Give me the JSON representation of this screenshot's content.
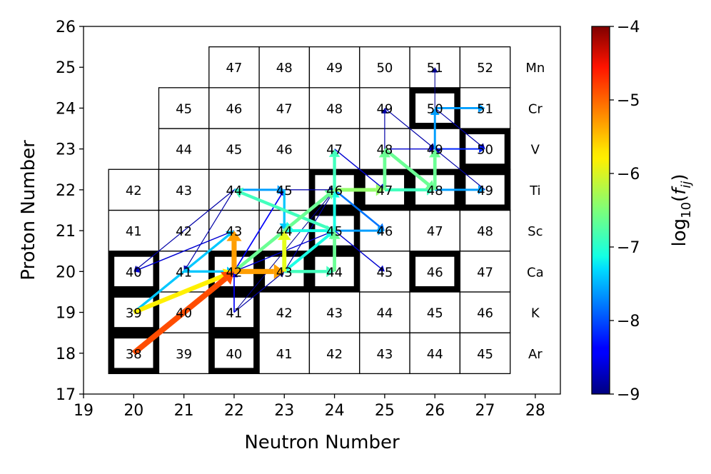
{
  "chart_data": {
    "type": "reaction-network-grid",
    "xlabel": "Neutron Number",
    "ylabel": "Proton Number",
    "xlim": [
      19,
      28.5
    ],
    "ylim": [
      17,
      26
    ],
    "x_ticks": [
      "19",
      "20",
      "21",
      "22",
      "23",
      "24",
      "25",
      "26",
      "27",
      "28"
    ],
    "y_ticks": [
      "17",
      "18",
      "19",
      "20",
      "21",
      "22",
      "23",
      "24",
      "25",
      "26"
    ],
    "colorbar": {
      "label_prefix": "log",
      "label_sub": "10",
      "label_open": "(",
      "label_var": "f",
      "label_var_sub": "ij",
      "label_close": ")",
      "min": -9,
      "max": -4,
      "ticks": [
        "−4",
        "−5",
        "−6",
        "−7",
        "−8",
        "−9"
      ],
      "colormap": "jet"
    },
    "rows": [
      {
        "element": "Ar",
        "Z": 18,
        "cells": [
          {
            "N": 20,
            "A": "38"
          },
          {
            "N": 21,
            "A": "39"
          },
          {
            "N": 22,
            "A": "40"
          },
          {
            "N": 23,
            "A": "41"
          },
          {
            "N": 24,
            "A": "42"
          },
          {
            "N": 25,
            "A": "43"
          },
          {
            "N": 26,
            "A": "44"
          },
          {
            "N": 27,
            "A": "45"
          }
        ]
      },
      {
        "element": "K",
        "Z": 19,
        "cells": [
          {
            "N": 20,
            "A": "39"
          },
          {
            "N": 21,
            "A": "40"
          },
          {
            "N": 22,
            "A": "41"
          },
          {
            "N": 23,
            "A": "42"
          },
          {
            "N": 24,
            "A": "43"
          },
          {
            "N": 25,
            "A": "44"
          },
          {
            "N": 26,
            "A": "45"
          },
          {
            "N": 27,
            "A": "46"
          }
        ]
      },
      {
        "element": "Ca",
        "Z": 20,
        "cells": [
          {
            "N": 20,
            "A": "40"
          },
          {
            "N": 21,
            "A": "41"
          },
          {
            "N": 22,
            "A": "42"
          },
          {
            "N": 23,
            "A": "43"
          },
          {
            "N": 24,
            "A": "44"
          },
          {
            "N": 25,
            "A": "45"
          },
          {
            "N": 26,
            "A": "46"
          },
          {
            "N": 27,
            "A": "47"
          }
        ]
      },
      {
        "element": "Sc",
        "Z": 21,
        "cells": [
          {
            "N": 20,
            "A": "41"
          },
          {
            "N": 21,
            "A": "42"
          },
          {
            "N": 22,
            "A": "43"
          },
          {
            "N": 23,
            "A": "44"
          },
          {
            "N": 24,
            "A": "45"
          },
          {
            "N": 25,
            "A": "46"
          },
          {
            "N": 26,
            "A": "47"
          },
          {
            "N": 27,
            "A": "48"
          }
        ]
      },
      {
        "element": "Ti",
        "Z": 22,
        "cells": [
          {
            "N": 20,
            "A": "42"
          },
          {
            "N": 21,
            "A": "43"
          },
          {
            "N": 22,
            "A": "44"
          },
          {
            "N": 23,
            "A": "45"
          },
          {
            "N": 24,
            "A": "46"
          },
          {
            "N": 25,
            "A": "47"
          },
          {
            "N": 26,
            "A": "48"
          },
          {
            "N": 27,
            "A": "49"
          }
        ]
      },
      {
        "element": "V",
        "Z": 23,
        "cells": [
          {
            "N": 21,
            "A": "44"
          },
          {
            "N": 22,
            "A": "45"
          },
          {
            "N": 23,
            "A": "46"
          },
          {
            "N": 24,
            "A": "47"
          },
          {
            "N": 25,
            "A": "48"
          },
          {
            "N": 26,
            "A": "49"
          },
          {
            "N": 27,
            "A": "50"
          }
        ]
      },
      {
        "element": "Cr",
        "Z": 24,
        "cells": [
          {
            "N": 21,
            "A": "45"
          },
          {
            "N": 22,
            "A": "46"
          },
          {
            "N": 23,
            "A": "47"
          },
          {
            "N": 24,
            "A": "48"
          },
          {
            "N": 25,
            "A": "49"
          },
          {
            "N": 26,
            "A": "50"
          },
          {
            "N": 27,
            "A": "51"
          }
        ]
      },
      {
        "element": "Mn",
        "Z": 25,
        "cells": [
          {
            "N": 22,
            "A": "47"
          },
          {
            "N": 23,
            "A": "48"
          },
          {
            "N": 24,
            "A": "49"
          },
          {
            "N": 25,
            "A": "50"
          },
          {
            "N": 26,
            "A": "51"
          },
          {
            "N": 27,
            "A": "52"
          }
        ]
      }
    ],
    "stable_isotopes": [
      {
        "N": 20,
        "Z": 18
      },
      {
        "N": 22,
        "Z": 18
      },
      {
        "N": 20,
        "Z": 19
      },
      {
        "N": 22,
        "Z": 19
      },
      {
        "N": 20,
        "Z": 20
      },
      {
        "N": 22,
        "Z": 20
      },
      {
        "N": 23,
        "Z": 20
      },
      {
        "N": 24,
        "Z": 20
      },
      {
        "N": 26,
        "Z": 20
      },
      {
        "N": 24,
        "Z": 21
      },
      {
        "N": 24,
        "Z": 22
      },
      {
        "N": 25,
        "Z": 22
      },
      {
        "N": 26,
        "Z": 22
      },
      {
        "N": 27,
        "Z": 22
      },
      {
        "N": 27,
        "Z": 23
      },
      {
        "N": 26,
        "Z": 24
      }
    ],
    "flows": [
      {
        "from": [
          20,
          18
        ],
        "to": [
          22,
          20
        ],
        "log10f": -5.0
      },
      {
        "from": [
          20,
          19
        ],
        "to": [
          22,
          20
        ],
        "log10f": -5.8
      },
      {
        "from": [
          20,
          19
        ],
        "to": [
          22,
          21
        ],
        "log10f": -7.4
      },
      {
        "from": [
          22,
          20
        ],
        "to": [
          22,
          21
        ],
        "log10f": -5.4
      },
      {
        "from": [
          22,
          20
        ],
        "to": [
          23,
          20
        ],
        "log10f": -5.4
      },
      {
        "from": [
          21,
          20
        ],
        "to": [
          22,
          20
        ],
        "log10f": -7.4
      },
      {
        "from": [
          21,
          19
        ],
        "to": [
          22,
          20
        ],
        "log10f": -8.8
      },
      {
        "from": [
          22,
          19
        ],
        "to": [
          22,
          20
        ],
        "log10f": -8.4
      },
      {
        "from": [
          22,
          19
        ],
        "to": [
          24,
          22
        ],
        "log10f": -8.9
      },
      {
        "from": [
          22,
          20
        ],
        "to": [
          24,
          22
        ],
        "log10f": -6.6
      },
      {
        "from": [
          23,
          20
        ],
        "to": [
          23,
          21
        ],
        "log10f": -6.0
      },
      {
        "from": [
          23,
          20
        ],
        "to": [
          24,
          20
        ],
        "log10f": -6.8
      },
      {
        "from": [
          24,
          20
        ],
        "to": [
          24,
          21
        ],
        "log10f": -6.6
      },
      {
        "from": [
          23,
          20
        ],
        "to": [
          24,
          21
        ],
        "log10f": -7.0
      },
      {
        "from": [
          23,
          21
        ],
        "to": [
          24,
          21
        ],
        "log10f": -7.0
      },
      {
        "from": [
          24,
          21
        ],
        "to": [
          24,
          22
        ],
        "log10f": -7.0
      },
      {
        "from": [
          24,
          21
        ],
        "to": [
          25,
          21
        ],
        "log10f": -7.6
      },
      {
        "from": [
          24,
          21
        ],
        "to": [
          22,
          22
        ],
        "log10f": -6.8
      },
      {
        "from": [
          22,
          22
        ],
        "to": [
          23,
          22
        ],
        "log10f": -7.6
      },
      {
        "from": [
          23,
          22
        ],
        "to": [
          24,
          22
        ],
        "log10f": -8.8
      },
      {
        "from": [
          23,
          22
        ],
        "to": [
          23,
          21
        ],
        "log10f": -7.4
      },
      {
        "from": [
          24,
          22
        ],
        "to": [
          24,
          23
        ],
        "log10f": -6.8
      },
      {
        "from": [
          24,
          22
        ],
        "to": [
          25,
          22
        ],
        "log10f": -6.4
      },
      {
        "from": [
          25,
          22
        ],
        "to": [
          26,
          22
        ],
        "log10f": -6.8
      },
      {
        "from": [
          25,
          22
        ],
        "to": [
          25,
          23
        ],
        "log10f": -6.6
      },
      {
        "from": [
          25,
          23
        ],
        "to": [
          26,
          22
        ],
        "log10f": -6.6
      },
      {
        "from": [
          26,
          22
        ],
        "to": [
          26,
          23
        ],
        "log10f": -6.6
      },
      {
        "from": [
          26,
          22
        ],
        "to": [
          27,
          22
        ],
        "log10f": -7.6
      },
      {
        "from": [
          26,
          23
        ],
        "to": [
          26,
          24
        ],
        "log10f": -7.6
      },
      {
        "from": [
          26,
          24
        ],
        "to": [
          27,
          24
        ],
        "log10f": -7.6
      },
      {
        "from": [
          26,
          23
        ],
        "to": [
          27,
          23
        ],
        "log10f": -8.2
      },
      {
        "from": [
          25,
          23
        ],
        "to": [
          26,
          23
        ],
        "log10f": -8.6
      },
      {
        "from": [
          24,
          23
        ],
        "to": [
          25,
          22
        ],
        "log10f": -8.6
      },
      {
        "from": [
          25,
          23
        ],
        "to": [
          25,
          24
        ],
        "log10f": -8.8
      },
      {
        "from": [
          25,
          24
        ],
        "to": [
          26,
          23
        ],
        "log10f": -8.8
      },
      {
        "from": [
          26,
          24
        ],
        "to": [
          26,
          25
        ],
        "log10f": -8.9
      },
      {
        "from": [
          26,
          24
        ],
        "to": [
          27,
          23
        ],
        "log10f": -8.8
      },
      {
        "from": [
          27,
          22
        ],
        "to": [
          26,
          23
        ],
        "log10f": -8.8
      },
      {
        "from": [
          24,
          21
        ],
        "to": [
          25,
          20
        ],
        "log10f": -8.6
      },
      {
        "from": [
          24,
          22
        ],
        "to": [
          25,
          21
        ],
        "log10f": -7.8
      },
      {
        "from": [
          24,
          22
        ],
        "to": [
          23,
          21
        ],
        "log10f": -7.0
      },
      {
        "from": [
          22,
          21
        ],
        "to": [
          20,
          20
        ],
        "log10f": -8.6
      },
      {
        "from": [
          22,
          21
        ],
        "to": [
          21,
          20
        ],
        "log10f": -8.6
      },
      {
        "from": [
          22,
          22
        ],
        "to": [
          20,
          20
        ],
        "log10f": -8.8
      },
      {
        "from": [
          22,
          22
        ],
        "to": [
          21,
          20
        ],
        "log10f": -8.8
      },
      {
        "from": [
          22,
          20
        ],
        "to": [
          24,
          21
        ],
        "log10f": -8.6
      },
      {
        "from": [
          21,
          20
        ],
        "to": [
          22,
          21
        ],
        "log10f": -8.6
      },
      {
        "from": [
          22,
          20
        ],
        "to": [
          23,
          22
        ],
        "log10f": -8.4
      },
      {
        "from": [
          22,
          19
        ],
        "to": [
          23,
          20
        ],
        "log10f": -8.8
      },
      {
        "from": [
          23,
          20
        ],
        "to": [
          24,
          22
        ],
        "log10f": -8.8
      },
      {
        "from": [
          22,
          22
        ],
        "to": [
          24,
          22
        ],
        "log10f": -8.9
      }
    ]
  }
}
